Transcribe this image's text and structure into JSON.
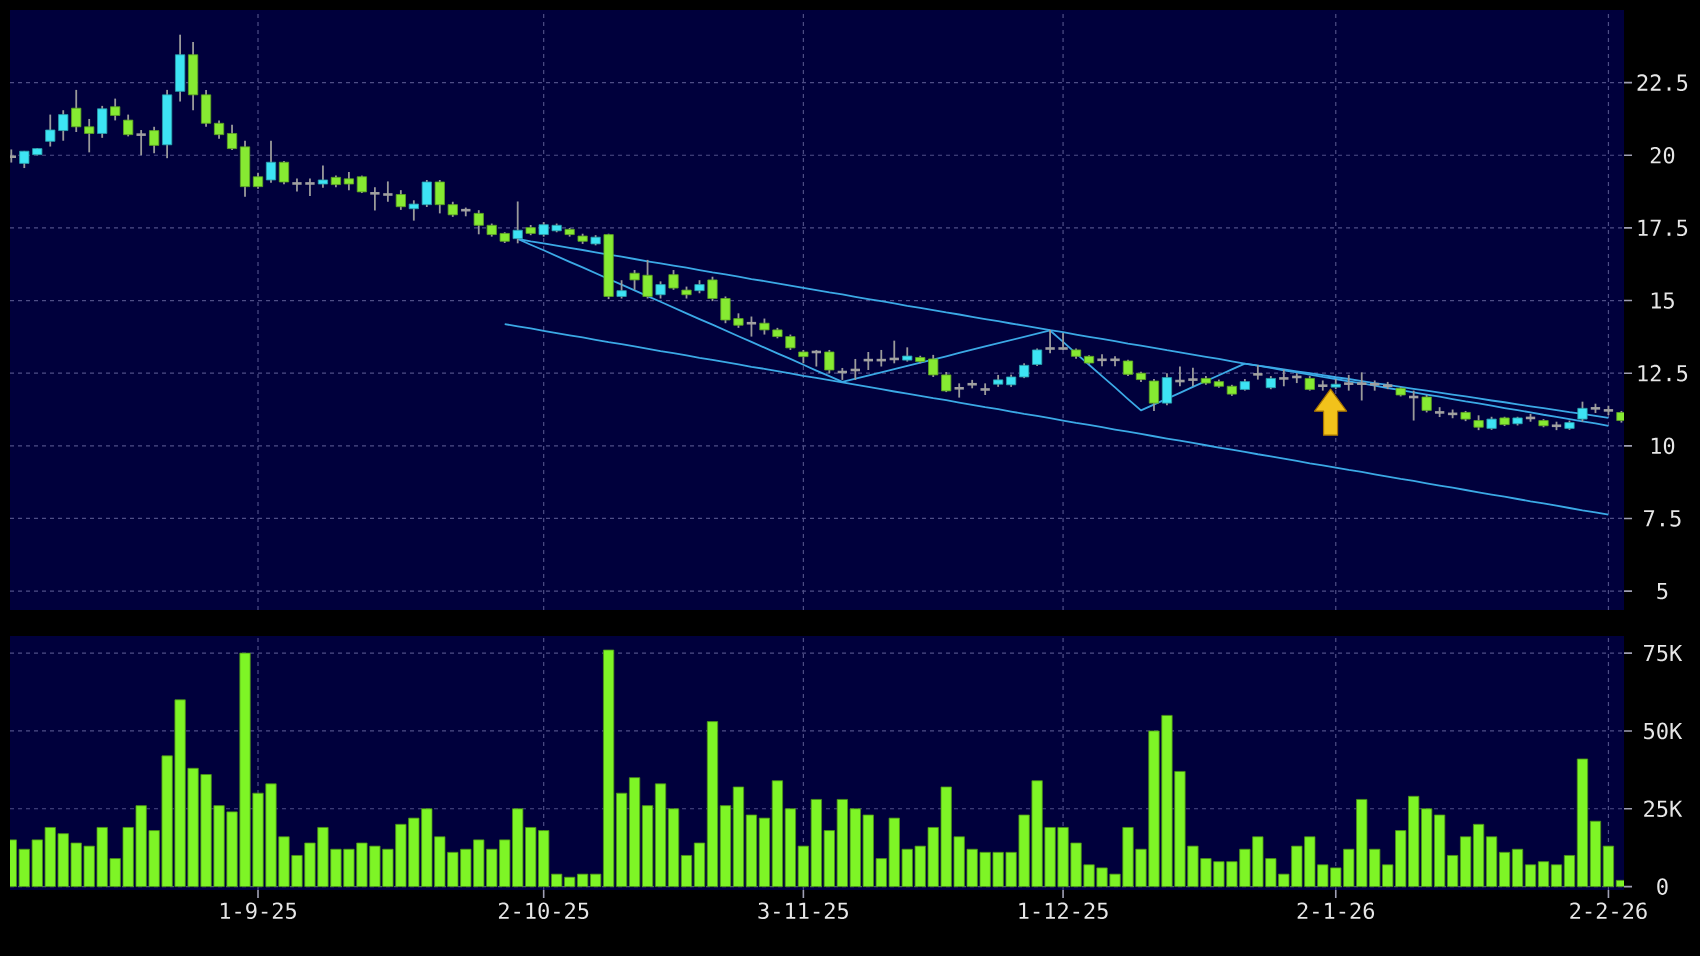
{
  "chart_data": [
    {
      "type": "candlestick",
      "categories": [
        null,
        null,
        null,
        null,
        null,
        null,
        null,
        null,
        null,
        null,
        null,
        null,
        null,
        null,
        null,
        null,
        null,
        null,
        null,
        null,
        null,
        null,
        null,
        null,
        null,
        null,
        null,
        null,
        null,
        null,
        null,
        null,
        null,
        null,
        null,
        null,
        null,
        null,
        null,
        null,
        null,
        null,
        null,
        null,
        null,
        null,
        null,
        null,
        null,
        null,
        null,
        null,
        null,
        null,
        null,
        null,
        null,
        null,
        null,
        null,
        null,
        null,
        null,
        null,
        null,
        null,
        null,
        null,
        null,
        null,
        null,
        null,
        null,
        null,
        null,
        null,
        null,
        null,
        null,
        null,
        null,
        null,
        null,
        null,
        null,
        null,
        null,
        null,
        null,
        null,
        null,
        null,
        null,
        null,
        null,
        null,
        null,
        null,
        null,
        null,
        null,
        null,
        null,
        null,
        null,
        null,
        null,
        null,
        null,
        null,
        null,
        null,
        null,
        null,
        null,
        null,
        null,
        null,
        null,
        null,
        null,
        null,
        null,
        null,
        null
      ],
      "ohlc": [
        [
          19.95,
          20.2,
          19.75,
          19.95
        ],
        [
          19.72,
          20.15,
          19.56,
          20.14
        ],
        [
          20.02,
          20.25,
          20.0,
          20.23
        ],
        [
          20.48,
          21.4,
          20.3,
          20.87
        ],
        [
          20.85,
          21.55,
          20.5,
          21.4
        ],
        [
          21.62,
          22.25,
          20.8,
          20.98
        ],
        [
          20.98,
          21.25,
          20.1,
          20.75
        ],
        [
          20.75,
          21.7,
          20.6,
          21.6
        ],
        [
          21.67,
          21.95,
          21.2,
          21.37
        ],
        [
          21.21,
          21.4,
          20.65,
          20.71
        ],
        [
          20.71,
          20.87,
          20.0,
          20.71
        ],
        [
          20.85,
          20.98,
          20.07,
          20.34
        ],
        [
          20.36,
          22.25,
          19.9,
          22.08
        ],
        [
          22.2,
          24.15,
          21.85,
          23.46
        ],
        [
          23.46,
          23.9,
          21.55,
          22.08
        ],
        [
          22.08,
          22.25,
          20.98,
          21.1
        ],
        [
          21.1,
          21.2,
          20.57,
          20.71
        ],
        [
          20.75,
          21.05,
          20.18,
          20.23
        ],
        [
          20.29,
          20.5,
          18.57,
          18.92
        ],
        [
          19.26,
          19.4,
          18.85,
          18.92
        ],
        [
          19.15,
          20.5,
          19.05,
          19.76
        ],
        [
          19.76,
          19.8,
          19.0,
          19.08
        ],
        [
          19.03,
          19.2,
          18.75,
          19.03
        ],
        [
          19.03,
          19.2,
          18.6,
          19.03
        ],
        [
          19.01,
          19.65,
          18.88,
          19.15
        ],
        [
          19.24,
          19.3,
          18.9,
          18.99
        ],
        [
          19.19,
          19.42,
          18.8,
          19.01
        ],
        [
          19.26,
          19.3,
          18.7,
          18.74
        ],
        [
          18.69,
          18.9,
          18.1,
          18.69
        ],
        [
          18.65,
          19.1,
          18.4,
          18.65
        ],
        [
          18.65,
          18.8,
          18.12,
          18.23
        ],
        [
          18.16,
          18.45,
          17.75,
          18.32
        ],
        [
          18.3,
          19.15,
          18.22,
          19.08
        ],
        [
          19.08,
          19.15,
          18.0,
          18.3
        ],
        [
          18.3,
          18.4,
          17.88,
          17.95
        ],
        [
          18.11,
          18.2,
          17.9,
          18.11
        ],
        [
          18.0,
          18.11,
          17.28,
          17.59
        ],
        [
          17.59,
          17.65,
          17.2,
          17.27
        ],
        [
          17.31,
          17.35,
          16.98,
          17.04
        ],
        [
          17.13,
          18.41,
          16.97,
          17.42
        ],
        [
          17.51,
          17.6,
          17.25,
          17.31
        ],
        [
          17.27,
          17.7,
          17.2,
          17.61
        ],
        [
          17.4,
          17.65,
          17.35,
          17.59
        ],
        [
          17.45,
          17.5,
          17.2,
          17.27
        ],
        [
          17.22,
          17.3,
          16.95,
          17.04
        ],
        [
          16.95,
          17.25,
          16.9,
          17.18
        ],
        [
          17.27,
          17.3,
          15.05,
          15.14
        ],
        [
          15.14,
          15.7,
          15.07,
          15.34
        ],
        [
          15.94,
          16.05,
          15.37,
          15.71
        ],
        [
          15.87,
          16.4,
          15.07,
          15.14
        ],
        [
          15.2,
          15.66,
          15.07,
          15.55
        ],
        [
          15.89,
          16.05,
          15.37,
          15.43
        ],
        [
          15.36,
          15.48,
          15.07,
          15.2
        ],
        [
          15.34,
          15.7,
          15.25,
          15.55
        ],
        [
          15.71,
          15.82,
          14.98,
          15.07
        ],
        [
          15.07,
          15.14,
          14.22,
          14.33
        ],
        [
          14.38,
          14.56,
          14.06,
          14.15
        ],
        [
          14.22,
          14.45,
          13.76,
          14.22
        ],
        [
          14.22,
          14.38,
          13.83,
          13.99
        ],
        [
          13.99,
          14.06,
          13.7,
          13.76
        ],
        [
          13.76,
          13.83,
          13.3,
          13.37
        ],
        [
          13.23,
          13.3,
          12.84,
          13.07
        ],
        [
          13.23,
          13.3,
          12.73,
          13.23
        ],
        [
          13.23,
          13.3,
          12.5,
          12.61
        ],
        [
          12.54,
          12.68,
          12.27,
          12.54
        ],
        [
          12.61,
          12.99,
          12.27,
          12.61
        ],
        [
          12.95,
          13.23,
          12.61,
          12.95
        ],
        [
          12.95,
          13.3,
          12.73,
          12.95
        ],
        [
          12.99,
          13.62,
          12.84,
          12.99
        ],
        [
          12.95,
          13.39,
          12.9,
          13.09
        ],
        [
          13.04,
          13.1,
          12.84,
          12.9
        ],
        [
          12.99,
          13.13,
          12.37,
          12.44
        ],
        [
          12.44,
          12.54,
          11.85,
          11.89
        ],
        [
          11.98,
          12.15,
          11.66,
          11.98
        ],
        [
          12.12,
          12.27,
          11.98,
          12.12
        ],
        [
          11.94,
          12.15,
          11.75,
          11.94
        ],
        [
          12.12,
          12.44,
          12.03,
          12.27
        ],
        [
          12.1,
          12.45,
          12.03,
          12.37
        ],
        [
          12.37,
          12.84,
          12.33,
          12.77
        ],
        [
          12.8,
          13.35,
          12.75,
          13.3
        ],
        [
          13.35,
          13.99,
          13.19,
          13.35
        ],
        [
          13.35,
          13.88,
          13.3,
          13.35
        ],
        [
          13.3,
          13.35,
          13.0,
          13.08
        ],
        [
          13.08,
          13.12,
          12.8,
          12.85
        ],
        [
          12.96,
          13.15,
          12.74,
          12.96
        ],
        [
          12.96,
          13.08,
          12.74,
          12.96
        ],
        [
          12.92,
          12.96,
          12.4,
          12.46
        ],
        [
          12.5,
          12.55,
          12.2,
          12.28
        ],
        [
          12.23,
          12.3,
          11.2,
          11.47
        ],
        [
          11.47,
          12.5,
          11.4,
          12.35
        ],
        [
          12.23,
          12.73,
          12.05,
          12.23
        ],
        [
          12.28,
          12.69,
          12.05,
          12.28
        ],
        [
          12.32,
          12.4,
          12.1,
          12.16
        ],
        [
          12.21,
          12.28,
          12.0,
          12.05
        ],
        [
          12.05,
          12.1,
          11.72,
          11.78
        ],
        [
          11.94,
          12.3,
          11.9,
          12.21
        ],
        [
          12.46,
          12.78,
          12.28,
          12.46
        ],
        [
          12.0,
          12.4,
          11.95,
          12.32
        ],
        [
          12.32,
          12.62,
          12.05,
          12.32
        ],
        [
          12.37,
          12.5,
          12.16,
          12.37
        ],
        [
          12.32,
          12.4,
          11.9,
          11.94
        ],
        [
          12.07,
          12.25,
          11.9,
          12.07
        ],
        [
          12.02,
          12.3,
          11.95,
          12.12
        ],
        [
          12.14,
          12.44,
          11.9,
          12.14
        ],
        [
          12.14,
          12.53,
          11.56,
          12.14
        ],
        [
          12.12,
          12.25,
          11.9,
          12.12
        ],
        [
          12.07,
          12.2,
          11.95,
          12.07
        ],
        [
          11.98,
          12.02,
          11.7,
          11.75
        ],
        [
          11.68,
          11.9,
          10.87,
          11.68
        ],
        [
          11.68,
          11.75,
          11.15,
          11.22
        ],
        [
          11.15,
          11.33,
          10.99,
          11.15
        ],
        [
          11.1,
          11.25,
          10.95,
          11.1
        ],
        [
          11.15,
          11.2,
          10.85,
          10.92
        ],
        [
          10.87,
          11.05,
          10.54,
          10.64
        ],
        [
          10.6,
          11.0,
          10.55,
          10.92
        ],
        [
          10.96,
          11.0,
          10.68,
          10.73
        ],
        [
          10.76,
          11.0,
          10.7,
          10.96
        ],
        [
          10.96,
          11.1,
          10.83,
          10.96
        ],
        [
          10.87,
          10.92,
          10.64,
          10.69
        ],
        [
          10.69,
          10.83,
          10.54,
          10.69
        ],
        [
          10.6,
          10.87,
          10.55,
          10.8
        ],
        [
          10.92,
          11.52,
          10.83,
          11.29
        ],
        [
          11.29,
          11.45,
          11.13,
          11.29
        ],
        [
          11.22,
          11.38,
          11.06,
          11.22
        ],
        [
          11.15,
          11.2,
          10.8,
          10.87
        ]
      ],
      "colors": [
        "#a0a0a0",
        "#3de4f4",
        "#3de4f4",
        "#3de4f4",
        "#3de4f4",
        "#86ea32",
        "#86ea32",
        "#3de4f4",
        "#86ea32",
        "#86ea32",
        "#a0a0a0",
        "#86ea32",
        "#3de4f4",
        "#3de4f4",
        "#86ea32",
        "#86ea32",
        "#86ea32",
        "#86ea32",
        "#86ea32",
        "#86ea32",
        "#3de4f4",
        "#86ea32",
        "#a0a0a0",
        "#a0a0a0",
        "#3de4f4",
        "#86ea32",
        "#86ea32",
        "#86ea32",
        "#a0a0a0",
        "#a0a0a0",
        "#86ea32",
        "#3de4f4",
        "#3de4f4",
        "#86ea32",
        "#86ea32",
        "#a0a0a0",
        "#86ea32",
        "#86ea32",
        "#86ea32",
        "#3de4f4",
        "#86ea32",
        "#3de4f4",
        "#3de4f4",
        "#86ea32",
        "#86ea32",
        "#3de4f4",
        "#86ea32",
        "#3de4f4",
        "#86ea32",
        "#86ea32",
        "#3de4f4",
        "#86ea32",
        "#86ea32",
        "#3de4f4",
        "#86ea32",
        "#86ea32",
        "#86ea32",
        "#a0a0a0",
        "#86ea32",
        "#86ea32",
        "#86ea32",
        "#86ea32",
        "#a0a0a0",
        "#86ea32",
        "#a0a0a0",
        "#a0a0a0",
        "#a0a0a0",
        "#a0a0a0",
        "#a0a0a0",
        "#3de4f4",
        "#86ea32",
        "#86ea32",
        "#86ea32",
        "#a0a0a0",
        "#a0a0a0",
        "#a0a0a0",
        "#3de4f4",
        "#3de4f4",
        "#3de4f4",
        "#3de4f4",
        "#a0a0a0",
        "#a0a0a0",
        "#86ea32",
        "#86ea32",
        "#a0a0a0",
        "#a0a0a0",
        "#86ea32",
        "#86ea32",
        "#86ea32",
        "#3de4f4",
        "#a0a0a0",
        "#a0a0a0",
        "#86ea32",
        "#86ea32",
        "#86ea32",
        "#3de4f4",
        "#a0a0a0",
        "#3de4f4",
        "#a0a0a0",
        "#a0a0a0",
        "#86ea32",
        "#a0a0a0",
        "#3de4f4",
        "#a0a0a0",
        "#a0a0a0",
        "#a0a0a0",
        "#a0a0a0",
        "#86ea32",
        "#a0a0a0",
        "#86ea32",
        "#a0a0a0",
        "#a0a0a0",
        "#86ea32",
        "#86ea32",
        "#3de4f4",
        "#86ea32",
        "#3de4f4",
        "#a0a0a0",
        "#86ea32",
        "#a0a0a0",
        "#3de4f4",
        "#3de4f4",
        "#a0a0a0",
        "#a0a0a0",
        "#86ea32"
      ],
      "series": [
        {
          "type": "line",
          "color": "#3ba9e6",
          "values": [
            null,
            null,
            null,
            null,
            null,
            null,
            null,
            null,
            null,
            null,
            null,
            null,
            null,
            null,
            null,
            null,
            null,
            null,
            null,
            null,
            null,
            null,
            null,
            null,
            null,
            null,
            null,
            null,
            null,
            null,
            null,
            null,
            null,
            null,
            null,
            null,
            null,
            null,
            null,
            17.12,
            17.04,
            16.97,
            16.89,
            16.81,
            16.74,
            16.66,
            16.58,
            16.51,
            16.43,
            16.35,
            16.28,
            16.2,
            16.13,
            16.05,
            15.97,
            15.9,
            15.82,
            15.74,
            15.67,
            15.59,
            15.51,
            15.44,
            15.36,
            15.28,
            15.21,
            15.13,
            15.05,
            14.98,
            14.9,
            14.82,
            14.75,
            14.67,
            14.59,
            14.52,
            14.44,
            14.36,
            14.29,
            14.21,
            14.14,
            14.06,
            13.98,
            13.91,
            13.83,
            13.75,
            13.68,
            13.6,
            13.52,
            13.45,
            13.37,
            13.29,
            13.22,
            13.14,
            13.06,
            12.99,
            12.91,
            12.83,
            12.76,
            12.68,
            12.6,
            12.53,
            12.45,
            12.37,
            12.3,
            12.22,
            12.15,
            12.07,
            11.99,
            11.92,
            11.84,
            11.76,
            11.69,
            11.61,
            11.53,
            11.46,
            11.38,
            11.3,
            11.23,
            11.15,
            11.07,
            11.0,
            10.92,
            10.84,
            10.77,
            10.69,
            null
          ]
        },
        {
          "type": "line",
          "color": "#3ba9e6",
          "values": [
            null,
            null,
            null,
            null,
            null,
            null,
            null,
            null,
            null,
            null,
            null,
            null,
            null,
            null,
            null,
            null,
            null,
            null,
            null,
            null,
            null,
            null,
            null,
            null,
            null,
            null,
            null,
            null,
            null,
            null,
            null,
            null,
            null,
            null,
            null,
            null,
            null,
            null,
            null,
            null,
            null,
            null,
            null,
            null,
            null,
            null,
            null,
            null,
            null,
            null,
            null,
            null,
            null,
            null,
            null,
            null,
            null,
            null,
            null,
            null,
            null,
            null,
            null,
            null,
            null,
            null,
            null,
            null,
            null,
            null,
            null,
            null,
            null,
            null,
            null,
            null,
            null,
            null,
            null,
            null,
            null,
            null,
            null,
            null,
            null,
            null,
            null,
            null,
            null,
            null,
            null,
            null,
            null,
            null,
            null,
            12.83,
            12.76,
            12.7,
            12.63,
            12.56,
            12.5,
            12.43,
            12.36,
            12.3,
            12.23,
            12.16,
            12.1,
            12.03,
            11.96,
            11.9,
            11.83,
            11.76,
            11.7,
            11.63,
            11.56,
            11.5,
            11.43,
            11.36,
            11.3,
            11.23,
            11.16,
            11.1,
            11.03,
            10.96,
            null
          ]
        },
        {
          "type": "line",
          "color": "#3ba9e6",
          "values": [
            null,
            null,
            null,
            null,
            null,
            null,
            null,
            null,
            null,
            null,
            null,
            null,
            null,
            null,
            null,
            null,
            null,
            null,
            null,
            null,
            null,
            null,
            null,
            null,
            null,
            null,
            null,
            null,
            null,
            null,
            null,
            null,
            null,
            null,
            null,
            null,
            null,
            null,
            14.19,
            14.11,
            14.04,
            13.96,
            13.88,
            13.8,
            13.73,
            13.65,
            13.57,
            13.5,
            13.42,
            13.34,
            13.26,
            13.19,
            13.11,
            13.03,
            12.96,
            12.88,
            12.8,
            12.72,
            12.65,
            12.57,
            12.49,
            12.41,
            12.34,
            12.26,
            12.18,
            12.11,
            12.03,
            11.95,
            11.87,
            11.8,
            11.72,
            11.64,
            11.57,
            11.49,
            11.41,
            11.33,
            11.26,
            11.18,
            11.1,
            11.03,
            10.95,
            10.87,
            10.79,
            10.72,
            10.64,
            10.56,
            10.49,
            10.41,
            10.33,
            10.25,
            10.18,
            10.1,
            10.02,
            9.94,
            9.87,
            9.79,
            9.71,
            9.64,
            9.56,
            9.48,
            9.4,
            9.33,
            9.25,
            9.17,
            9.1,
            9.02,
            8.94,
            8.86,
            8.79,
            8.71,
            8.63,
            8.56,
            8.48,
            8.4,
            8.32,
            8.25,
            8.17,
            8.09,
            8.02,
            7.94,
            7.86,
            7.78,
            7.71,
            7.63,
            null
          ]
        },
        {
          "type": "line",
          "color": "#3ba9e6",
          "values": [
            null,
            null,
            null,
            null,
            null,
            null,
            null,
            null,
            null,
            null,
            null,
            null,
            null,
            null,
            null,
            null,
            null,
            null,
            null,
            null,
            null,
            null,
            null,
            null,
            null,
            null,
            null,
            null,
            null,
            null,
            null,
            null,
            null,
            null,
            null,
            null,
            null,
            null,
            null,
            17.12,
            16.92,
            16.73,
            16.53,
            16.33,
            16.14,
            15.94,
            15.74,
            15.55,
            15.35,
            15.15,
            14.96,
            14.76,
            14.56,
            14.36,
            14.17,
            13.97,
            13.77,
            13.58,
            13.38,
            13.18,
            12.99,
            12.79,
            12.59,
            12.4,
            12.2,
            12.31,
            12.42,
            12.53,
            12.64,
            12.75,
            12.86,
            12.97,
            13.08,
            13.2,
            13.31,
            13.42,
            13.53,
            13.64,
            13.75,
            13.86,
            13.97,
            13.58,
            13.18,
            12.79,
            12.4,
            12.01,
            11.61,
            11.22,
            11.42,
            11.62,
            11.82,
            12.03,
            12.23,
            12.43,
            12.63,
            12.83,
            null,
            null,
            null,
            null,
            null,
            null,
            null,
            null,
            null,
            null,
            null,
            null,
            null,
            null,
            null,
            null,
            null,
            null,
            null,
            null,
            null,
            null,
            null,
            null,
            null,
            null,
            null,
            null,
            null
          ]
        }
      ],
      "ylim": [
        4.35,
        25.0
      ],
      "yticks": [
        5,
        7.5,
        10,
        12.5,
        15,
        17.5,
        20,
        22.5
      ],
      "grid": true,
      "tick_labels": "y"
    },
    {
      "type": "bar",
      "categories": [
        null,
        null,
        null,
        null,
        null,
        null,
        null,
        null,
        null,
        null,
        null,
        null,
        null,
        null,
        null,
        null,
        null,
        null,
        null,
        "1-9-25",
        null,
        null,
        null,
        null,
        null,
        null,
        null,
        null,
        null,
        null,
        null,
        null,
        null,
        null,
        null,
        null,
        null,
        null,
        null,
        null,
        null,
        "2-10-25",
        null,
        null,
        null,
        null,
        null,
        null,
        null,
        null,
        null,
        null,
        null,
        null,
        null,
        null,
        null,
        null,
        null,
        null,
        null,
        "3-11-25",
        null,
        null,
        null,
        null,
        null,
        null,
        null,
        null,
        null,
        null,
        null,
        null,
        null,
        null,
        null,
        null,
        null,
        null,
        null,
        "1-12-25",
        null,
        null,
        null,
        null,
        null,
        null,
        null,
        null,
        null,
        null,
        null,
        null,
        null,
        null,
        null,
        null,
        null,
        null,
        null,
        null,
        "2-1-26",
        null,
        null,
        null,
        null,
        null,
        null,
        null,
        null,
        null,
        null,
        null,
        null,
        null,
        null,
        null,
        null,
        null,
        null,
        null,
        null,
        "2-2-26",
        null
      ],
      "values": [
        15,
        12,
        15,
        19,
        17,
        14,
        13,
        19,
        9,
        19,
        26,
        18,
        42,
        60,
        38,
        36,
        26,
        24,
        75,
        30,
        33,
        16,
        10,
        14,
        19,
        12,
        12,
        14,
        13,
        12,
        20,
        22,
        25,
        16,
        11,
        12,
        15,
        12,
        15,
        25,
        19,
        18,
        4,
        3,
        4,
        4,
        76,
        30,
        35,
        26,
        33,
        25,
        10,
        14,
        53,
        26,
        32,
        23,
        22,
        34,
        25,
        13,
        28,
        18,
        28,
        25,
        23,
        9,
        22,
        12,
        13,
        19,
        32,
        16,
        12,
        11,
        11,
        11,
        23,
        34,
        19,
        19,
        14,
        7,
        6,
        4,
        19,
        12,
        50,
        55,
        37,
        13,
        9,
        8,
        8,
        12,
        16,
        9,
        4,
        13,
        16,
        7,
        6,
        12,
        28,
        12,
        7,
        18,
        29,
        25,
        23,
        10,
        16,
        20,
        16,
        11,
        12,
        7,
        8,
        7,
        10,
        41,
        21,
        13,
        2
      ],
      "color": "#7ef526",
      "ylim": [
        -1.1,
        80.5
      ],
      "yticks": [
        0,
        {
          "value": 25,
          "label": "25K"
        },
        {
          "value": 50,
          "label": "50K"
        },
        {
          "value": 75,
          "label": "75K"
        }
      ],
      "grid": true
    }
  ]
}
